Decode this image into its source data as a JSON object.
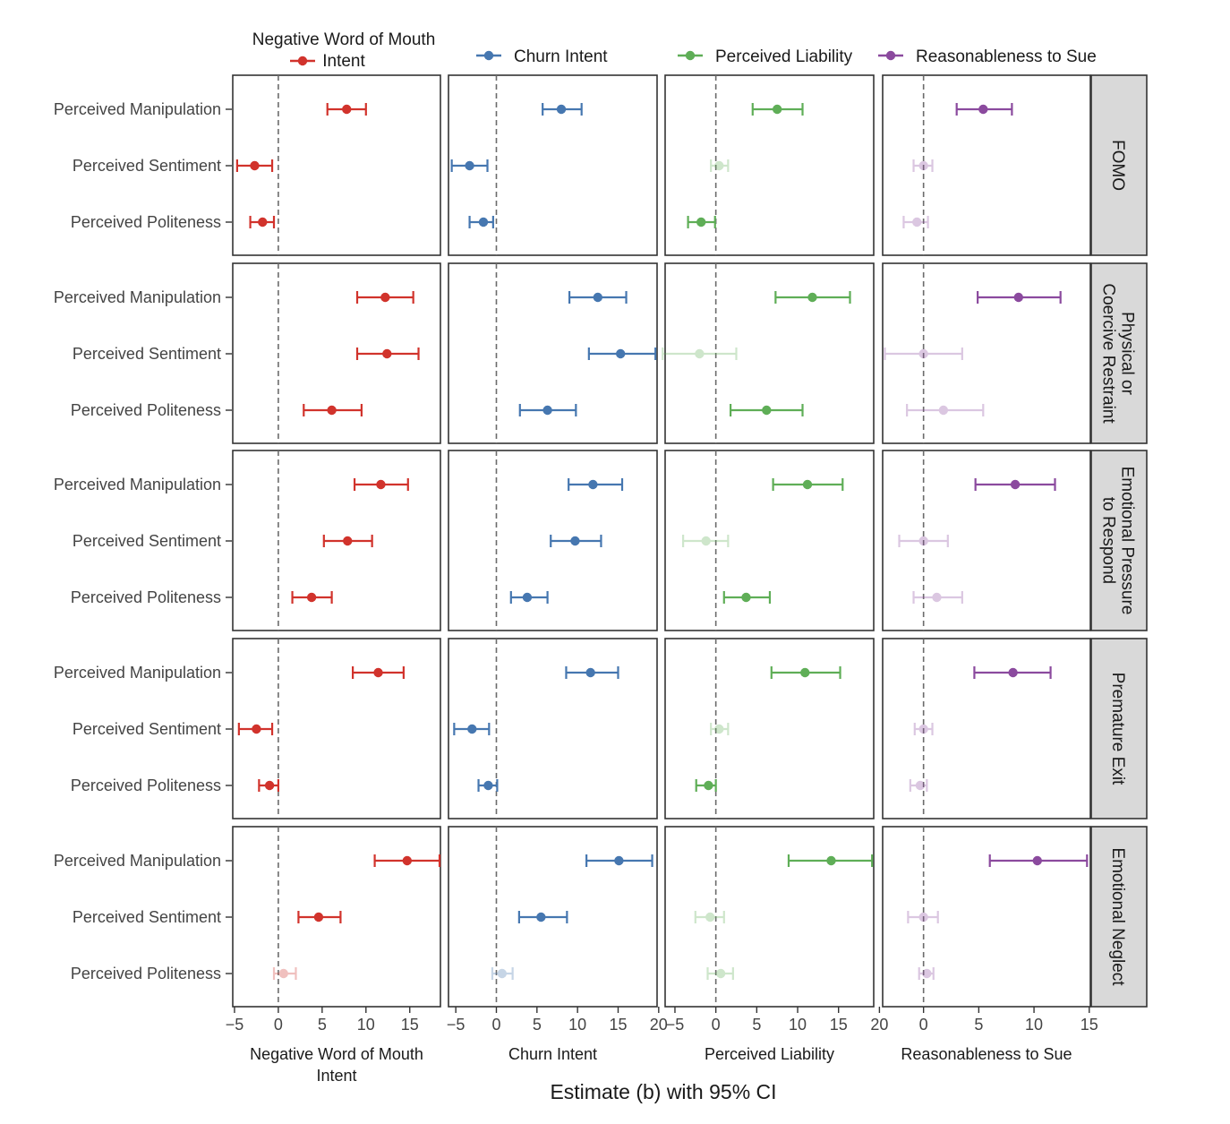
{
  "chart_data": {
    "type": "forest-plot",
    "xlabel": "Estimate (b) with 95% CI",
    "row_labels": [
      "Perceived Manipulation",
      "Perceived Sentiment",
      "Perceived Politeness"
    ],
    "facets": [
      "FOMO",
      "Physical or Coercive Restraint",
      "Emotional Pressure to Respond",
      "Premature Exit",
      "Emotional Neglect"
    ],
    "facet_label_lines": [
      [
        "FOMO"
      ],
      [
        "Physical or",
        "Coercive Restraint"
      ],
      [
        "Emotional Pressure",
        "to Respond"
      ],
      [
        "Premature Exit"
      ],
      [
        "Emotional Neglect"
      ]
    ],
    "legend": {
      "placement": "top"
    },
    "outcomes": [
      {
        "name": "Negative Word of Mouth Intent",
        "axis_label_lines": [
          "Negative Word of Mouth",
          "Intent"
        ],
        "legend_lines": [
          "Negative Word of Mouth",
          "Intent"
        ],
        "color": "#d1332c",
        "xlim": [
          -5.2,
          18.5
        ],
        "ticks": [
          -5,
          0,
          5,
          10,
          15
        ],
        "tick_labels": [
          "−5",
          "0",
          "5",
          "10",
          "15"
        ]
      },
      {
        "name": "Churn Intent",
        "axis_label_lines": [
          "Churn Intent"
        ],
        "legend_lines": [
          "Churn Intent"
        ],
        "color": "#4677b0",
        "xlim": [
          -5.9,
          19.8
        ],
        "ticks": [
          -5,
          0,
          5,
          10,
          15,
          20
        ],
        "tick_labels": [
          "−5",
          "0",
          "5",
          "10",
          "15",
          "20"
        ]
      },
      {
        "name": "Perceived Liability",
        "axis_label_lines": [
          "Perceived Liability"
        ],
        "legend_lines": [
          "Perceived Liability"
        ],
        "color": "#5fae57",
        "xlim": [
          -6.2,
          19.3
        ],
        "ticks": [
          -5,
          0,
          5,
          10,
          15,
          20
        ],
        "tick_labels": [
          "−5",
          "0",
          "5",
          "10",
          "15",
          "20"
        ]
      },
      {
        "name": "Reasonableness to Sue",
        "axis_label_lines": [
          "Reasonableness to Sue"
        ],
        "legend_lines": [
          "Reasonableness to Sue"
        ],
        "color": "#8b4a9e",
        "xlim": [
          -3.7,
          15.1
        ],
        "ticks": [
          0,
          5,
          10,
          15
        ],
        "tick_labels": [
          "0",
          "5",
          "10",
          "15"
        ]
      }
    ],
    "estimates": [
      [
        [
          [
            7.8,
            5.6,
            10.0,
            1
          ],
          [
            -2.7,
            -4.7,
            -0.7,
            1
          ],
          [
            -1.8,
            -3.2,
            -0.5,
            1
          ]
        ],
        [
          [
            8.0,
            5.7,
            10.5,
            1
          ],
          [
            -3.3,
            -5.5,
            -1.1,
            1
          ],
          [
            -1.6,
            -3.3,
            -0.4,
            1
          ]
        ],
        [
          [
            7.5,
            4.5,
            10.6,
            1
          ],
          [
            0.4,
            -0.6,
            1.5,
            0
          ],
          [
            -1.8,
            -3.4,
            -0.1,
            1
          ]
        ],
        [
          [
            5.4,
            3.0,
            8.0,
            1
          ],
          [
            0.0,
            -0.9,
            0.8,
            0
          ],
          [
            -0.6,
            -1.8,
            0.4,
            0
          ]
        ]
      ],
      [
        [
          [
            12.2,
            9.0,
            15.4,
            1
          ],
          [
            12.4,
            9.0,
            16.0,
            1
          ],
          [
            6.1,
            2.9,
            9.5,
            1
          ]
        ],
        [
          [
            12.5,
            9.0,
            16.0,
            1
          ],
          [
            15.3,
            11.4,
            19.6,
            1
          ],
          [
            6.3,
            2.9,
            9.8,
            1
          ]
        ],
        [
          [
            11.8,
            7.3,
            16.4,
            1
          ],
          [
            -2.0,
            -6.5,
            2.5,
            0
          ],
          [
            6.2,
            1.8,
            10.6,
            1
          ]
        ],
        [
          [
            8.6,
            4.9,
            12.4,
            1
          ],
          [
            0.0,
            -3.5,
            3.5,
            0
          ],
          [
            1.8,
            -1.5,
            5.4,
            0
          ]
        ]
      ],
      [
        [
          [
            11.7,
            8.7,
            14.8,
            1
          ],
          [
            7.9,
            5.2,
            10.7,
            1
          ],
          [
            3.8,
            1.6,
            6.1,
            1
          ]
        ],
        [
          [
            11.9,
            8.9,
            15.5,
            1
          ],
          [
            9.7,
            6.7,
            12.9,
            1
          ],
          [
            3.8,
            1.8,
            6.3,
            1
          ]
        ],
        [
          [
            11.2,
            7.0,
            15.5,
            1
          ],
          [
            -1.2,
            -4.0,
            1.5,
            0
          ],
          [
            3.7,
            1.0,
            6.6,
            1
          ]
        ],
        [
          [
            8.3,
            4.7,
            11.9,
            1
          ],
          [
            0.0,
            -2.2,
            2.2,
            0
          ],
          [
            1.2,
            -0.9,
            3.5,
            0
          ]
        ]
      ],
      [
        [
          [
            11.4,
            8.5,
            14.3,
            1
          ],
          [
            -2.5,
            -4.5,
            -0.7,
            1
          ],
          [
            -1.0,
            -2.2,
            0.0,
            1
          ]
        ],
        [
          [
            11.6,
            8.6,
            15.0,
            1
          ],
          [
            -3.0,
            -5.2,
            -0.9,
            1
          ],
          [
            -1.0,
            -2.2,
            0.1,
            1
          ]
        ],
        [
          [
            10.9,
            6.8,
            15.2,
            1
          ],
          [
            0.4,
            -0.6,
            1.5,
            0
          ],
          [
            -0.9,
            -2.4,
            0.0,
            1
          ]
        ],
        [
          [
            8.1,
            4.6,
            11.5,
            1
          ],
          [
            0.0,
            -0.8,
            0.8,
            0
          ],
          [
            -0.3,
            -1.2,
            0.3,
            0
          ]
        ]
      ],
      [
        [
          [
            14.7,
            11.0,
            18.4,
            1
          ],
          [
            4.6,
            2.3,
            7.1,
            1
          ],
          [
            0.6,
            -0.5,
            2.0,
            0
          ]
        ],
        [
          [
            15.1,
            11.1,
            19.2,
            1
          ],
          [
            5.5,
            2.8,
            8.7,
            1
          ],
          [
            0.7,
            -0.5,
            2.0,
            0
          ]
        ],
        [
          [
            14.1,
            8.9,
            19.1,
            1
          ],
          [
            -0.7,
            -2.5,
            1.0,
            0
          ],
          [
            0.6,
            -1.0,
            2.1,
            0
          ]
        ],
        [
          [
            10.3,
            6.0,
            14.8,
            1
          ],
          [
            0.0,
            -1.4,
            1.3,
            0
          ],
          [
            0.3,
            -0.4,
            0.9,
            0
          ]
        ]
      ]
    ]
  }
}
